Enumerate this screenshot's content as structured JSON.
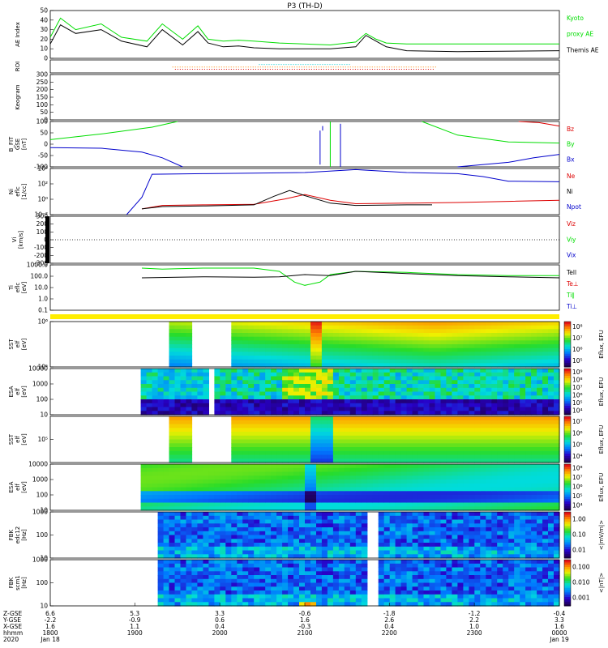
{
  "title": "P3 (TH-D)",
  "colors": {
    "black": "#000000",
    "green": "#00dd00",
    "red": "#dd0000",
    "blue": "#0000cc",
    "cyan": "#00cccc",
    "orange": "#ff8800",
    "yellow": "#ffee00"
  },
  "chart_data": [
    {
      "id": "ae",
      "type": "line",
      "ylabel": [
        "AE Index"
      ],
      "ylim": [
        0,
        50
      ],
      "yticks": [
        "0",
        "10",
        "20",
        "30",
        "40",
        "50"
      ],
      "legend": [
        {
          "text": "Kyoto",
          "color": "green"
        },
        {
          "text": "proxy AE",
          "color": "green"
        },
        {
          "text": "Themis AE",
          "color": "black"
        }
      ],
      "series": [
        {
          "name": "Kyoto proxy AE",
          "color": "green",
          "x": [
            0,
            0.02,
            0.05,
            0.1,
            0.14,
            0.19,
            0.22,
            0.26,
            0.29,
            0.31,
            0.34,
            0.37,
            0.4,
            0.45,
            0.55,
            0.6,
            0.62,
            0.64,
            0.66,
            0.7,
            0.8,
            1.0
          ],
          "y": [
            22,
            42,
            30,
            36,
            22,
            18,
            36,
            20,
            34,
            20,
            18,
            19,
            18,
            16,
            14,
            17,
            26,
            20,
            16,
            15,
            15,
            15
          ]
        },
        {
          "name": "Themis AE",
          "color": "black",
          "x": [
            0,
            0.02,
            0.05,
            0.1,
            0.14,
            0.19,
            0.22,
            0.26,
            0.29,
            0.31,
            0.34,
            0.37,
            0.4,
            0.45,
            0.55,
            0.6,
            0.62,
            0.64,
            0.66,
            0.7,
            0.8,
            1.0
          ],
          "y": [
            15,
            35,
            26,
            30,
            18,
            12,
            30,
            14,
            28,
            16,
            12,
            13,
            11,
            10,
            10,
            12,
            24,
            18,
            12,
            8,
            7,
            8
          ]
        }
      ]
    },
    {
      "id": "roi",
      "type": "table",
      "ylabel": [
        "ROI"
      ],
      "yticks": []
    },
    {
      "id": "keogram",
      "type": "heatmap",
      "ylabel": [
        "Keogram"
      ],
      "ylim": [
        0,
        300
      ],
      "yticks": [
        "0",
        "50",
        "100",
        "150",
        "200",
        "250",
        "300"
      ]
    },
    {
      "id": "bfld",
      "type": "line",
      "ylabel": [
        "B_FIT",
        "GSE",
        "[nT]"
      ],
      "ylim": [
        -100,
        100
      ],
      "yticks": [
        "-100",
        "-50",
        "0",
        "50",
        "100"
      ],
      "legend": [
        {
          "text": "Bz",
          "color": "red"
        },
        {
          "text": "By",
          "color": "green"
        },
        {
          "text": "Bx",
          "color": "blue"
        }
      ],
      "series": [
        {
          "name": "By",
          "color": "green",
          "x": [
            0,
            0.1,
            0.2,
            0.25
          ],
          "y": [
            20,
            45,
            75,
            100
          ]
        },
        {
          "name": "By",
          "color": "green",
          "x": [
            0.73,
            0.8,
            0.9,
            1.0
          ],
          "y": [
            100,
            40,
            10,
            5
          ]
        },
        {
          "name": "Bx",
          "color": "blue",
          "x": [
            0,
            0.1,
            0.18,
            0.22,
            0.26
          ],
          "y": [
            -15,
            -18,
            -35,
            -60,
            -100
          ]
        },
        {
          "name": "Bx",
          "color": "blue",
          "x": [
            0.8,
            0.9,
            0.95,
            1.0
          ],
          "y": [
            -100,
            -80,
            -60,
            -45
          ]
        },
        {
          "name": "Bz",
          "color": "red",
          "x": [
            0.92,
            0.96,
            1.0
          ],
          "y": [
            100,
            95,
            80
          ]
        }
      ]
    },
    {
      "id": "dens",
      "type": "line",
      "ylabel": [
        "Ni",
        "eflc",
        "[1/cc]"
      ],
      "ylim": [
        -3,
        5
      ],
      "yticks": [
        "10⁻²",
        "10⁰",
        "10²",
        "10⁴"
      ],
      "legend": [
        {
          "text": "Ne",
          "color": "red"
        },
        {
          "text": "Ni",
          "color": "black"
        },
        {
          "text": "Npot",
          "color": "blue"
        }
      ],
      "series": [
        {
          "name": "Npot",
          "color": "blue",
          "x": [
            0.15,
            0.18,
            0.2,
            0.3,
            0.4,
            0.5,
            0.6,
            0.7,
            0.8,
            0.85,
            0.9,
            1.0
          ],
          "y": [
            -3,
            0,
            4,
            4.1,
            4.2,
            4.3,
            4.8,
            4.3,
            4.1,
            3.6,
            2.8,
            2.7
          ]
        },
        {
          "name": "Ne",
          "color": "red",
          "x": [
            0.18,
            0.22,
            0.3,
            0.4,
            0.46,
            0.5,
            0.55,
            0.6,
            0.7,
            0.8,
            0.9,
            1.0
          ],
          "y": [
            -2,
            -1.4,
            -1.3,
            -1.2,
            -0.3,
            0.5,
            -0.5,
            -1.1,
            -1.0,
            -0.9,
            -0.7,
            -0.5
          ]
        },
        {
          "name": "Ni",
          "color": "black",
          "x": [
            0.18,
            0.22,
            0.3,
            0.4,
            0.44,
            0.47,
            0.5,
            0.55,
            0.6,
            0.7,
            0.75
          ],
          "y": [
            -2,
            -1.6,
            -1.5,
            -1.3,
            0.2,
            1.2,
            0.3,
            -1,
            -1.4,
            -1.3,
            -1.3
          ]
        }
      ]
    },
    {
      "id": "vel",
      "type": "line",
      "ylabel": [
        "Vi",
        "[km/s]"
      ],
      "ylim": [
        -300,
        300
      ],
      "yticks": [
        "-300",
        "-200",
        "-100",
        "0",
        "100",
        "200",
        "300"
      ],
      "legend": [
        {
          "text": "Viz",
          "color": "red"
        },
        {
          "text": "Viy",
          "color": "green"
        },
        {
          "text": "Vix",
          "color": "blue"
        }
      ],
      "series": []
    },
    {
      "id": "temp",
      "type": "line",
      "ylabel": [
        "Ti",
        "eflc",
        "[eV]"
      ],
      "ylim": [
        -1,
        3.2
      ],
      "yticks": [
        "0.1",
        "1.0",
        "10.0",
        "100.0",
        "1000.0"
      ],
      "legend": [
        {
          "text": "Tell",
          "color": "black"
        },
        {
          "text": "Te⊥",
          "color": "red"
        },
        {
          "text": "Ti∥",
          "color": "green"
        },
        {
          "text": "Ti⊥",
          "color": "blue"
        }
      ],
      "series": [
        {
          "name": "Ti",
          "color": "green",
          "x": [
            0.18,
            0.22,
            0.25,
            0.3,
            0.4,
            0.45,
            0.48,
            0.5,
            0.53,
            0.55,
            0.6,
            0.7,
            0.8,
            0.9,
            1.0
          ],
          "y": [
            2.9,
            2.8,
            2.85,
            2.9,
            2.9,
            2.6,
            1.6,
            1.3,
            1.6,
            2.3,
            2.6,
            2.5,
            2.3,
            2.2,
            2.2
          ]
        },
        {
          "name": "Te",
          "color": "black",
          "x": [
            0.18,
            0.25,
            0.3,
            0.4,
            0.45,
            0.5,
            0.55,
            0.6,
            0.7,
            0.8,
            0.9,
            1.0
          ],
          "y": [
            2.0,
            2.05,
            2.1,
            2.05,
            2.1,
            2.3,
            2.2,
            2.6,
            2.4,
            2.2,
            2.1,
            2.0
          ]
        }
      ]
    },
    {
      "id": "sst_e",
      "type": "heatmap",
      "ylabel": [
        "SST",
        "elf",
        "[eV]"
      ],
      "yticks": [
        "10⁵",
        "10⁶"
      ],
      "cbar": {
        "label": "Eflux, EFU",
        "ticks": [
          "10⁵",
          "10⁶",
          "10⁷",
          "10⁸"
        ]
      }
    },
    {
      "id": "esa_e",
      "type": "heatmap",
      "ylabel": [
        "ESA",
        "elf",
        "[eV]"
      ],
      "yticks": [
        "10",
        "100",
        "1000",
        "10000"
      ],
      "cbar": {
        "label": "Eflux, EFU",
        "ticks": [
          "10⁴",
          "10⁵",
          "10⁶",
          "10⁷",
          "10⁸",
          "10⁹"
        ]
      }
    },
    {
      "id": "sst_i",
      "type": "heatmap",
      "ylabel": [
        "SST",
        "elf",
        "[eV]"
      ],
      "yticks": [
        "10⁵"
      ],
      "cbar": {
        "label": "Eflux, EFU",
        "ticks": [
          "10⁴",
          "10⁵",
          "10⁶",
          "10⁷"
        ]
      }
    },
    {
      "id": "esa_i",
      "type": "heatmap",
      "ylabel": [
        "ESA",
        "elf",
        "[eV]"
      ],
      "yticks": [
        "10",
        "100",
        "1000",
        "10000"
      ],
      "cbar": {
        "label": "Eflux, EFU",
        "ticks": [
          "10⁴",
          "10⁵",
          "10⁶",
          "10⁷",
          "10⁸"
        ]
      }
    },
    {
      "id": "fbk1",
      "type": "heatmap",
      "ylabel": [
        "FBK",
        "edc12",
        "[Hz]"
      ],
      "yticks": [
        "10",
        "100",
        "1000"
      ],
      "cbar": {
        "label": "<|mV/m|>",
        "ticks": [
          "0.01",
          "0.10",
          "1.00"
        ]
      }
    },
    {
      "id": "fbk2",
      "type": "heatmap",
      "ylabel": [
        "FBK",
        "scm1",
        "[Hz]"
      ],
      "yticks": [
        "10",
        "100",
        "1000"
      ],
      "cbar": {
        "label": "<|nT|>",
        "ticks": [
          "0.001",
          "0.010",
          "0.100"
        ]
      }
    }
  ],
  "xaxis": {
    "row_labels": [
      "Z-GSE",
      "Y-GSE",
      "X-GSE",
      "hhmm",
      "2020"
    ],
    "ticks": [
      {
        "x": 0.0,
        "lines": [
          "6.6",
          "-2.2",
          "1.6",
          "1800",
          "Jan 18"
        ]
      },
      {
        "x": 0.166,
        "lines": [
          "5.3",
          "-0.9",
          "1.1",
          "1900",
          ""
        ]
      },
      {
        "x": 0.333,
        "lines": [
          "3.3",
          "0.6",
          "0.4",
          "2000",
          ""
        ]
      },
      {
        "x": 0.5,
        "lines": [
          "-0.6",
          "1.6",
          "-0.3",
          "2100",
          ""
        ]
      },
      {
        "x": 0.666,
        "lines": [
          "-1.8",
          "2.6",
          "0.4",
          "2200",
          ""
        ]
      },
      {
        "x": 0.833,
        "lines": [
          "-1.2",
          "2.2",
          "1.0",
          "2300",
          ""
        ]
      },
      {
        "x": 1.0,
        "lines": [
          "-0.4",
          "3.3",
          "1.6",
          "0000",
          "Jan 19"
        ]
      }
    ]
  }
}
